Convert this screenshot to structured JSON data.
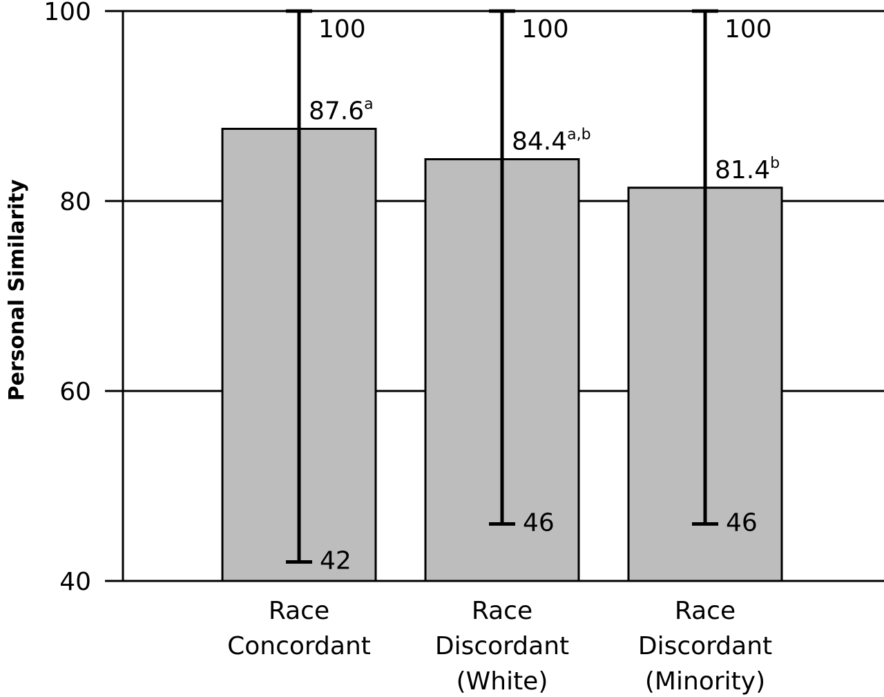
{
  "chart_data": {
    "type": "bar",
    "ylabel": "Personal Similarity",
    "xlabel": "",
    "title": "",
    "ylim": [
      40,
      100
    ],
    "yticks": [
      "40",
      "60",
      "80",
      "100"
    ],
    "grid": true,
    "categories": [
      [
        "Race",
        "Concordant"
      ],
      [
        "Race",
        "Discordant",
        "(White)"
      ],
      [
        "Race",
        "Discordant",
        "(Minority)"
      ]
    ],
    "values": [
      87.6,
      84.4,
      81.4
    ],
    "value_labels": [
      "87.6",
      "84.4",
      "81.4"
    ],
    "value_superscripts": [
      "a",
      "a,b",
      "b"
    ],
    "range_max": [
      100,
      100,
      100
    ],
    "range_min": [
      42,
      46,
      46
    ],
    "range_max_labels": [
      "100",
      "100",
      "100"
    ],
    "range_min_labels": [
      "42",
      "46",
      "46"
    ],
    "colors": {
      "bar": "#bdbdbd",
      "line": "#000000",
      "background": "#ffffff"
    }
  }
}
